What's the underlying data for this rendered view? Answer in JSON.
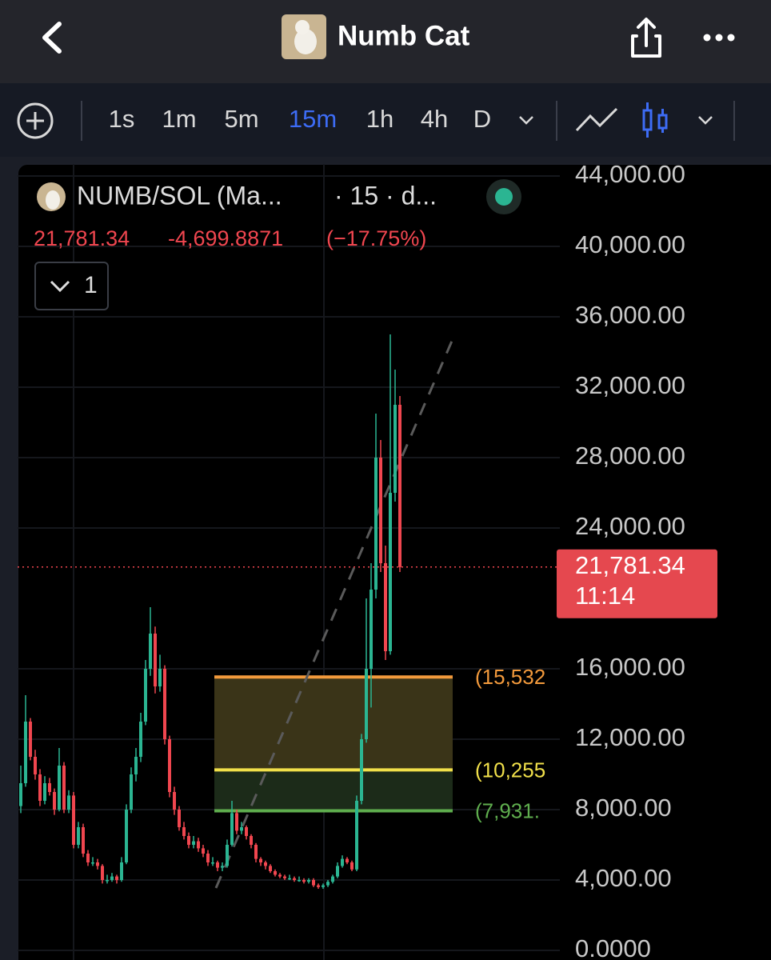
{
  "header": {
    "title": "Numb Cat"
  },
  "toolbar": {
    "intervals": [
      "1s",
      "1m",
      "5m",
      "15m",
      "1h",
      "4h",
      "D"
    ],
    "active": 3,
    "active_color": "#3d6cf5"
  },
  "chart_data": {
    "type": "candlestick",
    "symbol": "NUMB/SOL (Ma...",
    "symbol_suffix": "· 15 · d...",
    "last": "21,781.34",
    "change": "-4,699.8871",
    "change_pct": "(−17.75%)",
    "indicator_count": 1,
    "price_label": {
      "value": 21781.34,
      "label": "21,781.34"
    },
    "countdown": "11:14",
    "up_color": "#2bb592",
    "down_color": "#f0464f",
    "ylim": [
      0,
      44000
    ],
    "yticks": [
      {
        "value": 0,
        "label": "0.0000"
      },
      {
        "value": 4000,
        "label": "4,000.00"
      },
      {
        "value": 8000,
        "label": "8,000.00"
      },
      {
        "value": 12000,
        "label": "12,000.00"
      },
      {
        "value": 16000,
        "label": "16,000.00"
      },
      {
        "value": 24000,
        "label": "24,000.00"
      },
      {
        "value": 28000,
        "label": "28,000.00"
      },
      {
        "value": 32000,
        "label": "32,000.00"
      },
      {
        "value": 36000,
        "label": "36,000.00"
      },
      {
        "value": 40000,
        "label": "40,000.00"
      },
      {
        "value": 44000,
        "label": "44,000.00"
      }
    ],
    "fib_levels": [
      {
        "value": 15532,
        "label": "(15,532",
        "color": "#f39a3c"
      },
      {
        "value": 10255,
        "label": "(10,255",
        "color": "#f1e04a"
      },
      {
        "value": 7931,
        "label": "(7,931.",
        "color": "#5fae4e"
      }
    ],
    "candles": [
      [
        8200,
        10500,
        7800,
        9500
      ],
      [
        9500,
        14500,
        9300,
        13000
      ],
      [
        13000,
        13200,
        10800,
        11000
      ],
      [
        11000,
        11400,
        9700,
        10000
      ],
      [
        10000,
        10300,
        8200,
        8500
      ],
      [
        8500,
        9900,
        8300,
        9500
      ],
      [
        9500,
        9800,
        8800,
        9000
      ],
      [
        9000,
        9200,
        7700,
        8000
      ],
      [
        8000,
        11500,
        7900,
        10500
      ],
      [
        10500,
        10700,
        7800,
        8000
      ],
      [
        8000,
        9100,
        7800,
        8800
      ],
      [
        8800,
        9000,
        5800,
        6000
      ],
      [
        6000,
        7300,
        5800,
        7000
      ],
      [
        7000,
        7200,
        5300,
        5500
      ],
      [
        5500,
        5700,
        4800,
        5000
      ],
      [
        5000,
        5300,
        4800,
        5000
      ],
      [
        5000,
        5200,
        4600,
        4800
      ],
      [
        4800,
        4900,
        3800,
        4000
      ],
      [
        4000,
        4300,
        3800,
        4000
      ],
      [
        4000,
        4400,
        3900,
        4200
      ],
      [
        4200,
        4300,
        3800,
        4000
      ],
      [
        4000,
        5300,
        3900,
        5000
      ],
      [
        5000,
        8300,
        4900,
        8000
      ],
      [
        8000,
        10400,
        7800,
        10000
      ],
      [
        10000,
        11500,
        9600,
        11000
      ],
      [
        11000,
        13500,
        10700,
        13000
      ],
      [
        13000,
        16500,
        12800,
        16000
      ],
      [
        16000,
        19500,
        15600,
        18000
      ],
      [
        18000,
        18400,
        14600,
        15000
      ],
      [
        15000,
        16800,
        14700,
        16000
      ],
      [
        16000,
        16200,
        11700,
        12000
      ],
      [
        12000,
        12200,
        8700,
        9000
      ],
      [
        9000,
        9300,
        7700,
        8000
      ],
      [
        8000,
        8200,
        6800,
        7000
      ],
      [
        7000,
        7300,
        6300,
        6500
      ],
      [
        6500,
        6700,
        5800,
        6000
      ],
      [
        6000,
        6500,
        5800,
        6200
      ],
      [
        6200,
        6400,
        5600,
        5800
      ],
      [
        5800,
        6000,
        5300,
        5500
      ],
      [
        5500,
        5700,
        4800,
        5000
      ],
      [
        5000,
        5300,
        4800,
        5000
      ],
      [
        5000,
        5100,
        4500,
        4700
      ],
      [
        4700,
        5000,
        4500,
        4800
      ],
      [
        4800,
        6300,
        4700,
        6000
      ],
      [
        6000,
        8500,
        5900,
        7800
      ],
      [
        7800,
        8000,
        6600,
        6800
      ],
      [
        6800,
        7300,
        6600,
        7000
      ],
      [
        7000,
        7100,
        6300,
        6500
      ],
      [
        6500,
        6600,
        5800,
        6000
      ],
      [
        6000,
        6100,
        5000,
        5200
      ],
      [
        5200,
        5300,
        4800,
        5000
      ],
      [
        5000,
        5100,
        4600,
        4800
      ],
      [
        4800,
        4900,
        4400,
        4500
      ],
      [
        4500,
        4600,
        4200,
        4300
      ],
      [
        4300,
        4400,
        4100,
        4200
      ],
      [
        4200,
        4300,
        4000,
        4100
      ],
      [
        4100,
        4300,
        4000,
        4100
      ],
      [
        4100,
        4200,
        3900,
        4000
      ],
      [
        4000,
        4200,
        3900,
        4000
      ],
      [
        4000,
        4100,
        3800,
        3900
      ],
      [
        3900,
        4100,
        3800,
        4000
      ],
      [
        4000,
        4100,
        3600,
        3700
      ],
      [
        3700,
        3800,
        3500,
        3600
      ],
      [
        3600,
        3800,
        3500,
        3700
      ],
      [
        3700,
        4000,
        3600,
        3900
      ],
      [
        3900,
        4300,
        3800,
        4200
      ],
      [
        4200,
        5000,
        4100,
        4800
      ],
      [
        4800,
        5400,
        4700,
        5200
      ],
      [
        5200,
        5300,
        4900,
        5000
      ],
      [
        5000,
        5100,
        4500,
        4600
      ],
      [
        4600,
        8800,
        4500,
        8500
      ],
      [
        8500,
        12300,
        8300,
        12000
      ],
      [
        12000,
        20000,
        11800,
        16000
      ],
      [
        16000,
        22000,
        13800,
        20500
      ],
      [
        20500,
        30500,
        20000,
        28000
      ],
      [
        28000,
        29000,
        21500,
        22000
      ],
      [
        22000,
        23000,
        16500,
        17000
      ],
      [
        17000,
        35000,
        16800,
        26000
      ],
      [
        26000,
        33000,
        25500,
        31000
      ],
      [
        31000,
        31500,
        21500,
        21781.34
      ]
    ]
  }
}
